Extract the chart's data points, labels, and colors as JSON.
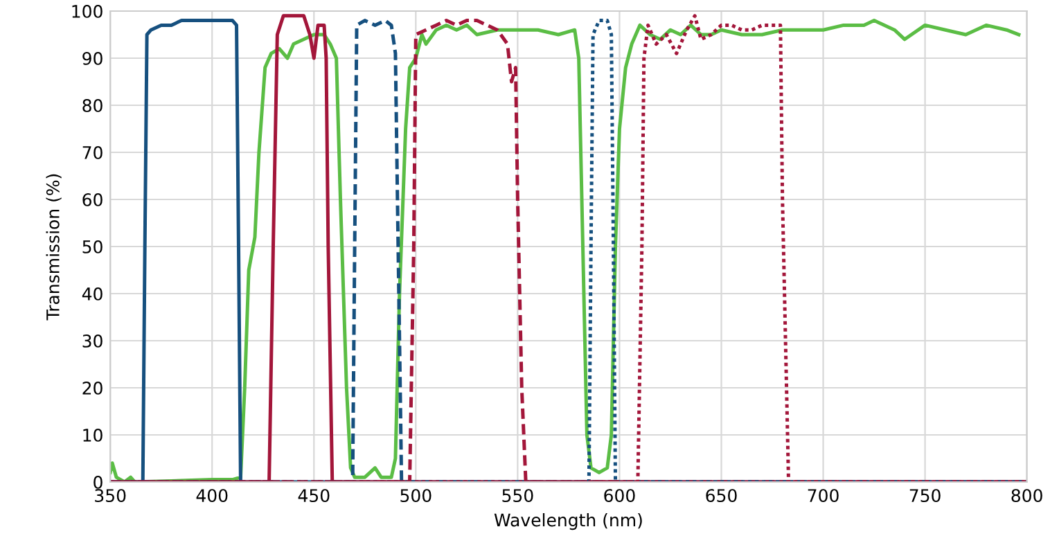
{
  "chart_data": {
    "type": "line",
    "xlabel": "Wavelength (nm)",
    "ylabel": "Transmission (%)",
    "xlim": [
      350,
      800
    ],
    "xticks": [
      350,
      400,
      450,
      500,
      550,
      600,
      650,
      700,
      750,
      800
    ],
    "ylim": [
      0,
      100
    ],
    "yticks": [
      0,
      10,
      20,
      30,
      40,
      50,
      60,
      70,
      80,
      90,
      100
    ],
    "grid": true,
    "legend": false,
    "series": [
      {
        "color": "#5bbd45",
        "line_style": "solid",
        "x": [
          350,
          351,
          353,
          357,
          360,
          362,
          400,
          410,
          414,
          416,
          418,
          421,
          423,
          426,
          429,
          433,
          437,
          440,
          445,
          450,
          455,
          458,
          461,
          463,
          466,
          468,
          470,
          475,
          480,
          483,
          488,
          490,
          492,
          495,
          497,
          500,
          503,
          505,
          510,
          515,
          520,
          525,
          530,
          540,
          550,
          560,
          570,
          578,
          580,
          582,
          584,
          586,
          590,
          594,
          596,
          598,
          600,
          603,
          606,
          610,
          615,
          620,
          625,
          630,
          635,
          640,
          645,
          650,
          660,
          670,
          680,
          690,
          700,
          710,
          720,
          725,
          735,
          740,
          750,
          760,
          770,
          780,
          790,
          796
        ],
        "values": [
          2,
          4,
          1,
          0,
          1,
          0,
          0.5,
          0.5,
          1,
          20,
          45,
          52,
          70,
          88,
          91,
          92,
          90,
          93,
          94,
          95,
          95,
          93,
          90,
          60,
          20,
          3,
          1,
          1,
          3,
          1,
          1,
          5,
          40,
          75,
          88,
          90,
          95,
          93,
          96,
          97,
          96,
          97,
          95,
          96,
          96,
          96,
          95,
          96,
          90,
          50,
          10,
          3,
          2,
          3,
          10,
          50,
          75,
          88,
          93,
          97,
          95,
          94,
          96,
          95,
          97,
          95,
          95,
          96,
          95,
          95,
          96,
          96,
          96,
          97,
          97,
          98,
          96,
          94,
          97,
          96,
          95,
          97,
          96,
          95
        ]
      },
      {
        "color": "#16507f",
        "line_style": "solid",
        "x": [
          350,
          366,
          367,
          368,
          370,
          375,
          380,
          385,
          390,
          395,
          400,
          405,
          410,
          412,
          413,
          414,
          800
        ],
        "values": [
          0,
          0,
          50,
          95,
          96,
          97,
          97,
          98,
          98,
          98,
          98,
          98,
          98,
          97,
          50,
          0,
          0
        ]
      },
      {
        "color": "#a3163a",
        "line_style": "solid",
        "x": [
          350,
          428,
          430,
          432,
          435,
          440,
          445,
          448,
          450,
          452,
          455,
          456,
          457,
          459,
          800
        ],
        "values": [
          0,
          0,
          50,
          95,
          99,
          99,
          99,
          95,
          90,
          97,
          97,
          90,
          50,
          0,
          0
        ]
      },
      {
        "color": "#16507f",
        "line_style": "dashed",
        "x": [
          350,
          469,
          470,
          471,
          475,
          480,
          485,
          488,
          490,
          491,
          493,
          800
        ],
        "values": [
          0,
          0,
          50,
          97,
          98,
          97,
          98,
          97,
          91,
          60,
          0,
          0
        ]
      },
      {
        "color": "#a3163a",
        "line_style": "dashed",
        "x": [
          350,
          497,
          499,
          500,
          505,
          510,
          515,
          520,
          525,
          530,
          535,
          540,
          545,
          547,
          549,
          550,
          552,
          554,
          800
        ],
        "values": [
          0,
          0,
          50,
          95,
          96,
          97,
          98,
          97,
          98,
          98,
          97,
          96,
          93,
          85,
          88,
          60,
          20,
          0,
          0
        ]
      },
      {
        "color": "#16507f",
        "line_style": "dotted",
        "x": [
          350,
          585,
          586,
          587,
          590,
          594,
          596,
          597,
          598,
          800
        ],
        "values": [
          0,
          0,
          50,
          95,
          98,
          98,
          95,
          50,
          0,
          0
        ]
      },
      {
        "color": "#a3163a",
        "line_style": "dotted",
        "x": [
          350,
          609,
          611,
          612,
          614,
          618,
          623,
          628,
          633,
          637,
          640,
          645,
          650,
          655,
          660,
          665,
          670,
          675,
          679,
          680,
          683,
          800
        ],
        "values": [
          0,
          0,
          50,
          90,
          97,
          93,
          95,
          91,
          96,
          99,
          94,
          95,
          97,
          97,
          96,
          96,
          97,
          97,
          97,
          60,
          0,
          0
        ]
      }
    ]
  }
}
